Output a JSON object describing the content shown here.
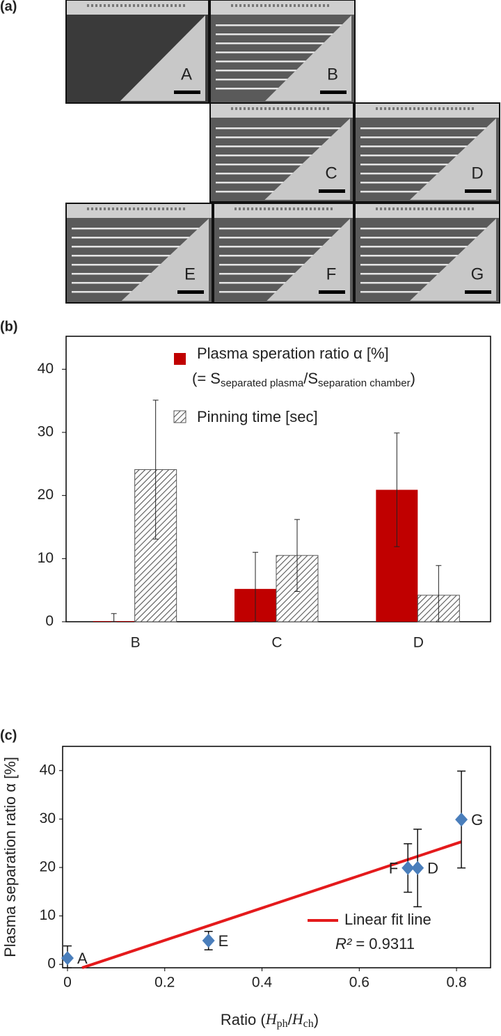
{
  "panels": [
    "(a)",
    "(b)",
    "(c)"
  ],
  "photos": {
    "labels": [
      "A",
      "B",
      "C",
      "D",
      "E",
      "F",
      "G"
    ]
  },
  "chart_data": [
    {
      "type": "bar",
      "categories": [
        "B",
        "C",
        "D"
      ],
      "ylim": [
        0,
        45
      ],
      "yticks": [
        0,
        10,
        20,
        30,
        40
      ],
      "legend_note": [
        "(= S",
        "separated plasma",
        "/S",
        "separation chamber",
        ")"
      ],
      "series": [
        {
          "name": "Plasma speration ratio α [%]",
          "color": "#c00000",
          "values": [
            0.1,
            5.2,
            20.9
          ],
          "errors": [
            1.2,
            5.8,
            9.0
          ]
        },
        {
          "name": "Pinning time [sec]",
          "color": "#555555",
          "pattern": "hatch",
          "values": [
            24.1,
            10.5,
            4.2
          ],
          "errors": [
            11.0,
            5.7,
            4.7
          ]
        }
      ]
    },
    {
      "type": "scatter",
      "y_label": "Plasma separation ratio α [%]",
      "x_label": [
        "Ratio (",
        "H",
        "ph",
        "/",
        "H",
        "ch",
        ")"
      ],
      "xlim": [
        -0.01,
        0.87
      ],
      "ylim": [
        -0.7,
        45
      ],
      "xticks": [
        0,
        0.2,
        0.4,
        0.6,
        0.8
      ],
      "yticks": [
        0,
        10,
        20,
        30,
        40
      ],
      "points": {
        "color": "#4a7ebb",
        "labels": [
          "A",
          "E",
          "F",
          "D",
          "G"
        ],
        "x": [
          0,
          0.29,
          0.7,
          0.72,
          0.81
        ],
        "values": [
          1.3,
          4.9,
          19.9,
          19.9,
          29.9
        ],
        "errors": [
          2.5,
          1.9,
          5.0,
          8.0,
          10.0
        ]
      },
      "fit": {
        "name": "Linear fit line",
        "color": "#e41a1c",
        "x": [
          0.03,
          0.81
        ],
        "values": [
          -0.7,
          25.3
        ]
      },
      "annotation": [
        "R²",
        " = 0.9311"
      ]
    }
  ]
}
